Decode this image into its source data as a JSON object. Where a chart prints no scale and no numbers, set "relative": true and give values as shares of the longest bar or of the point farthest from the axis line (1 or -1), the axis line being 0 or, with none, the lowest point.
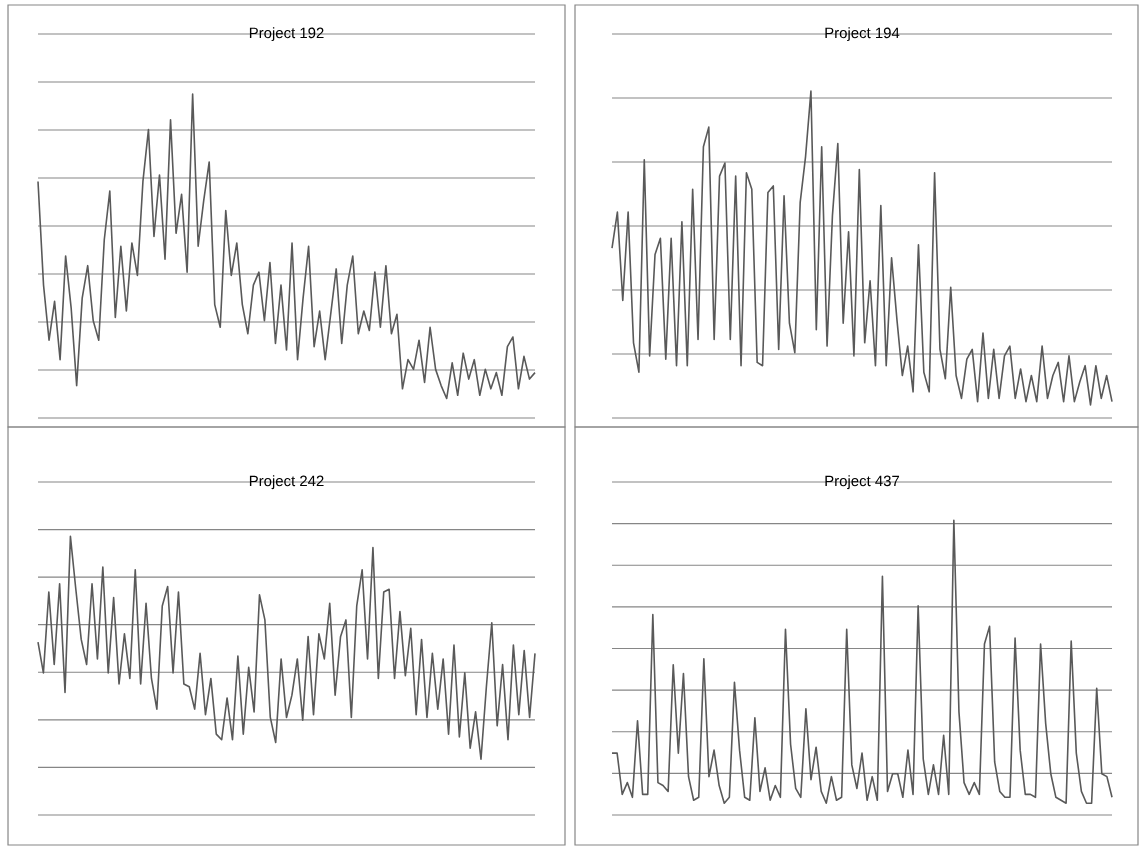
{
  "chart_data": [
    {
      "type": "line",
      "title": "Project 192",
      "relative": true,
      "grid": "y",
      "color": "#595959",
      "values": [
        0.73,
        0.41,
        0.24,
        0.36,
        0.18,
        0.5,
        0.34,
        0.1,
        0.37,
        0.47,
        0.3,
        0.24,
        0.55,
        0.7,
        0.31,
        0.53,
        0.33,
        0.54,
        0.44,
        0.73,
        0.89,
        0.56,
        0.75,
        0.49,
        0.92,
        0.57,
        0.69,
        0.45,
        1.0,
        0.53,
        0.67,
        0.79,
        0.35,
        0.28,
        0.64,
        0.44,
        0.54,
        0.35,
        0.26,
        0.41,
        0.45,
        0.3,
        0.48,
        0.23,
        0.41,
        0.21,
        0.54,
        0.18,
        0.37,
        0.53,
        0.22,
        0.33,
        0.18,
        0.32,
        0.46,
        0.23,
        0.41,
        0.5,
        0.26,
        0.33,
        0.27,
        0.45,
        0.28,
        0.47,
        0.26,
        0.32,
        0.09,
        0.18,
        0.15,
        0.24,
        0.11,
        0.28,
        0.15,
        0.1,
        0.06,
        0.17,
        0.07,
        0.2,
        0.12,
        0.18,
        0.07,
        0.15,
        0.09,
        0.14,
        0.07,
        0.22,
        0.25,
        0.09,
        0.19,
        0.12,
        0.14
      ]
    },
    {
      "type": "line",
      "title": "Project 194",
      "relative": true,
      "grid": "y",
      "color": "#595959",
      "values": [
        0.52,
        0.63,
        0.36,
        0.63,
        0.23,
        0.14,
        0.79,
        0.19,
        0.5,
        0.55,
        0.18,
        0.55,
        0.16,
        0.6,
        0.16,
        0.7,
        0.24,
        0.83,
        0.89,
        0.24,
        0.74,
        0.78,
        0.24,
        0.74,
        0.16,
        0.75,
        0.7,
        0.17,
        0.16,
        0.69,
        0.71,
        0.21,
        0.68,
        0.29,
        0.2,
        0.66,
        0.8,
        1.0,
        0.27,
        0.83,
        0.22,
        0.62,
        0.84,
        0.29,
        0.57,
        0.19,
        0.76,
        0.23,
        0.42,
        0.16,
        0.65,
        0.16,
        0.49,
        0.3,
        0.13,
        0.22,
        0.08,
        0.53,
        0.14,
        0.08,
        0.75,
        0.21,
        0.12,
        0.4,
        0.13,
        0.06,
        0.18,
        0.21,
        0.05,
        0.26,
        0.06,
        0.21,
        0.06,
        0.19,
        0.22,
        0.06,
        0.15,
        0.05,
        0.13,
        0.05,
        0.22,
        0.06,
        0.13,
        0.17,
        0.05,
        0.19,
        0.05,
        0.11,
        0.16,
        0.04,
        0.16,
        0.06,
        0.13,
        0.05
      ]
    },
    {
      "type": "line",
      "title": "Project 242",
      "relative": true,
      "grid": "y",
      "color": "#595959",
      "values": [
        0.62,
        0.51,
        0.8,
        0.54,
        0.83,
        0.44,
        1.0,
        0.81,
        0.63,
        0.54,
        0.83,
        0.56,
        0.89,
        0.51,
        0.78,
        0.47,
        0.65,
        0.49,
        0.88,
        0.47,
        0.76,
        0.49,
        0.38,
        0.75,
        0.82,
        0.51,
        0.8,
        0.47,
        0.46,
        0.38,
        0.58,
        0.36,
        0.49,
        0.29,
        0.27,
        0.42,
        0.27,
        0.57,
        0.29,
        0.53,
        0.37,
        0.79,
        0.7,
        0.35,
        0.26,
        0.56,
        0.35,
        0.43,
        0.56,
        0.34,
        0.64,
        0.36,
        0.65,
        0.56,
        0.76,
        0.43,
        0.64,
        0.7,
        0.35,
        0.75,
        0.88,
        0.56,
        0.96,
        0.49,
        0.8,
        0.81,
        0.49,
        0.73,
        0.5,
        0.67,
        0.36,
        0.63,
        0.35,
        0.58,
        0.38,
        0.56,
        0.29,
        0.61,
        0.28,
        0.51,
        0.24,
        0.37,
        0.2,
        0.46,
        0.69,
        0.32,
        0.54,
        0.27,
        0.61,
        0.36,
        0.59,
        0.35,
        0.58
      ]
    },
    {
      "type": "line",
      "title": "Project 437",
      "relative": true,
      "grid": "y",
      "color": "#595959",
      "values": [
        0.21,
        0.21,
        0.07,
        0.11,
        0.06,
        0.32,
        0.07,
        0.07,
        0.68,
        0.11,
        0.1,
        0.08,
        0.51,
        0.21,
        0.48,
        0.13,
        0.05,
        0.06,
        0.53,
        0.13,
        0.22,
        0.1,
        0.04,
        0.06,
        0.45,
        0.22,
        0.06,
        0.05,
        0.33,
        0.08,
        0.16,
        0.05,
        0.1,
        0.06,
        0.63,
        0.24,
        0.09,
        0.06,
        0.36,
        0.12,
        0.23,
        0.08,
        0.04,
        0.13,
        0.05,
        0.06,
        0.63,
        0.17,
        0.09,
        0.21,
        0.05,
        0.13,
        0.05,
        0.81,
        0.08,
        0.14,
        0.14,
        0.06,
        0.22,
        0.07,
        0.71,
        0.19,
        0.07,
        0.17,
        0.07,
        0.27,
        0.07,
        1.0,
        0.35,
        0.11,
        0.07,
        0.11,
        0.07,
        0.58,
        0.64,
        0.18,
        0.08,
        0.06,
        0.06,
        0.6,
        0.22,
        0.07,
        0.07,
        0.06,
        0.58,
        0.31,
        0.14,
        0.06,
        0.05,
        0.04,
        0.59,
        0.21,
        0.08,
        0.04,
        0.04,
        0.43,
        0.14,
        0.13,
        0.06
      ]
    }
  ]
}
